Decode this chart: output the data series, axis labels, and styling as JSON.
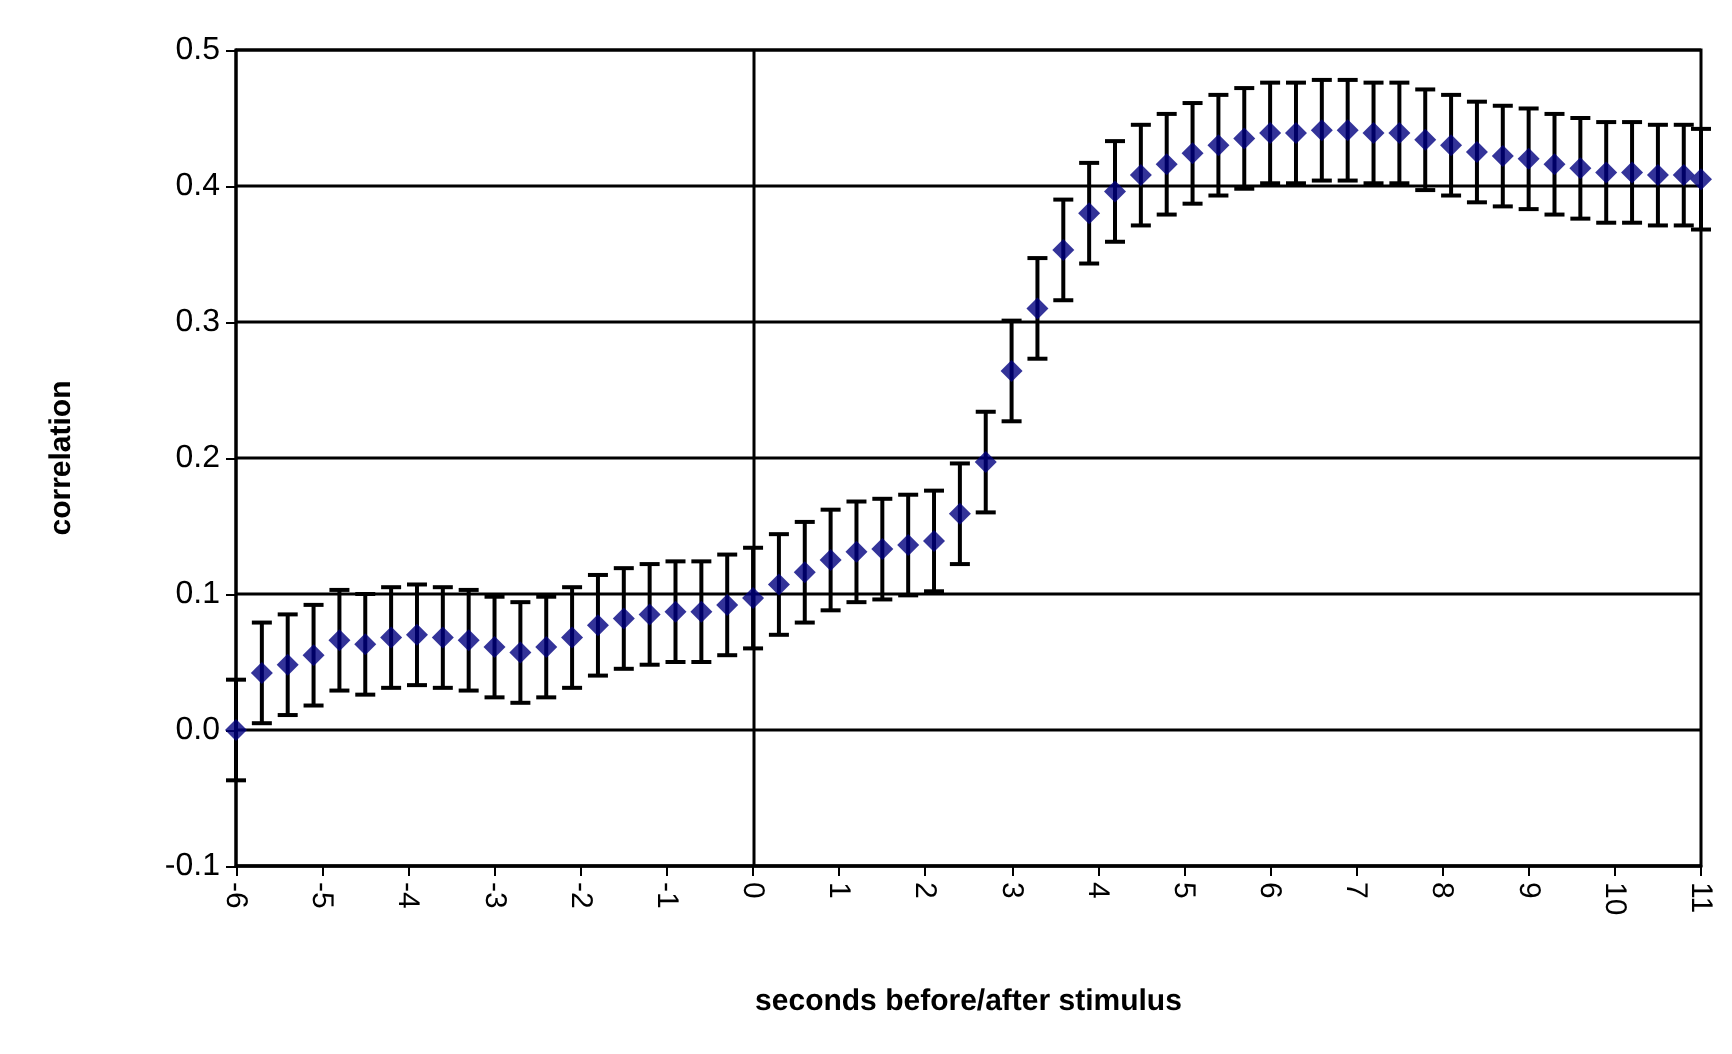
{
  "chart_data": {
    "type": "scatter",
    "xlabel": "seconds before/after stimulus",
    "ylabel": "correlation",
    "x": [
      -6,
      -5.7,
      -5.4,
      -5.1,
      -4.8,
      -4.5,
      -4.2,
      -3.9,
      -3.6,
      -3.3,
      -3,
      -2.7,
      -2.4,
      -2.1,
      -1.8,
      -1.5,
      -1.2,
      -0.9,
      -0.6,
      -0.3,
      0,
      0.3,
      0.6,
      0.9,
      1.2,
      1.5,
      1.8,
      2.1,
      2.4,
      2.7,
      3,
      3.3,
      3.6,
      3.9,
      4.2,
      4.5,
      4.8,
      5.1,
      5.4,
      5.7,
      6,
      6.3,
      6.6,
      6.9,
      7.2,
      7.5,
      7.8,
      8.1,
      8.4,
      8.7,
      9,
      9.3,
      9.6,
      9.9,
      10.2,
      10.5,
      10.8,
      11
    ],
    "values": [
      0.0,
      0.042,
      0.048,
      0.055,
      0.066,
      0.063,
      0.068,
      0.07,
      0.068,
      0.066,
      0.061,
      0.057,
      0.061,
      0.068,
      0.077,
      0.082,
      0.085,
      0.087,
      0.087,
      0.092,
      0.097,
      0.107,
      0.116,
      0.125,
      0.131,
      0.133,
      0.136,
      0.139,
      0.159,
      0.197,
      0.264,
      0.31,
      0.353,
      0.38,
      0.396,
      0.408,
      0.416,
      0.424,
      0.43,
      0.435,
      0.439,
      0.439,
      0.441,
      0.441,
      0.439,
      0.439,
      0.434,
      0.43,
      0.425,
      0.422,
      0.42,
      0.416,
      0.413,
      0.41,
      0.41,
      0.408,
      0.408,
      0.405
    ],
    "errors": [
      0.037,
      0.037,
      0.037,
      0.037,
      0.037,
      0.037,
      0.037,
      0.037,
      0.037,
      0.037,
      0.037,
      0.037,
      0.037,
      0.037,
      0.037,
      0.037,
      0.037,
      0.037,
      0.037,
      0.037,
      0.037,
      0.037,
      0.037,
      0.037,
      0.037,
      0.037,
      0.037,
      0.037,
      0.037,
      0.037,
      0.037,
      0.037,
      0.037,
      0.037,
      0.037,
      0.037,
      0.037,
      0.037,
      0.037,
      0.037,
      0.037,
      0.037,
      0.037,
      0.037,
      0.037,
      0.037,
      0.037,
      0.037,
      0.037,
      0.037,
      0.037,
      0.037,
      0.037,
      0.037,
      0.037,
      0.037,
      0.037,
      0.037
    ],
    "color": "#000080",
    "marker": "diamond",
    "xlim": [
      -6,
      11
    ],
    "xticks": [
      -6,
      -5,
      -4,
      -3,
      -2,
      -1,
      0,
      1,
      2,
      3,
      4,
      5,
      6,
      7,
      8,
      9,
      10,
      11
    ],
    "ylim": [
      -0.1,
      0.5
    ],
    "yticks": [
      -0.1,
      {
        "value": 0,
        "label": "0.0"
      },
      0.1,
      0.2,
      0.3,
      0.4,
      0.5
    ],
    "grid": "y",
    "ref_lines": [
      {
        "axis": "x",
        "value": 0
      }
    ]
  }
}
